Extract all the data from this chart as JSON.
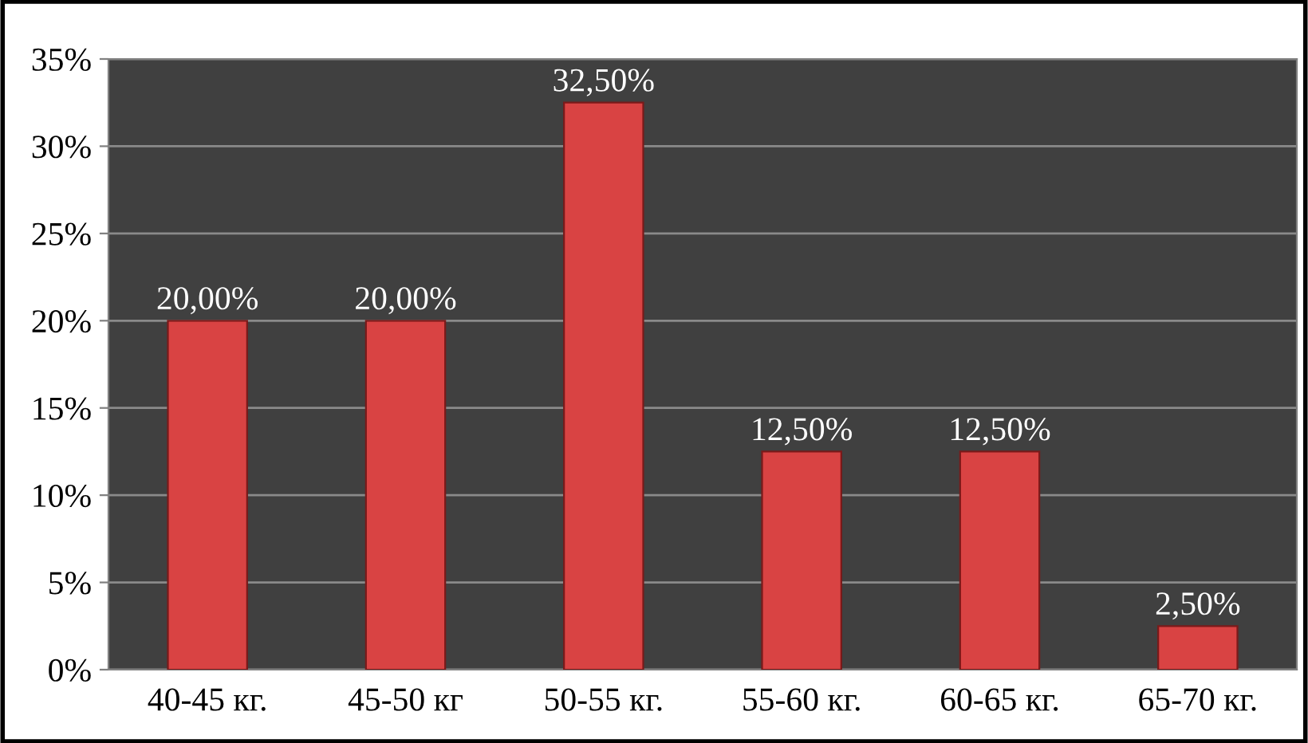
{
  "chart_data": {
    "type": "bar",
    "categories": [
      "40-45 кг.",
      "45-50 кг",
      "50-55 кг.",
      "55-60 кг.",
      "60-65 кг.",
      "65-70 кг."
    ],
    "values": [
      20,
      20,
      32.5,
      12.5,
      12.5,
      2.5
    ],
    "value_labels": [
      "20,00%",
      "20,00%",
      "32,50%",
      "12,50%",
      "12,50%",
      "2,50%"
    ],
    "color": "#d94343",
    "ylim": [
      0,
      35
    ],
    "yticks": [
      {
        "value": 0,
        "label": "0%"
      },
      {
        "value": 5,
        "label": "5%"
      },
      {
        "value": 10,
        "label": "10%"
      },
      {
        "value": 15,
        "label": "15%"
      },
      {
        "value": 20,
        "label": "20%"
      },
      {
        "value": 25,
        "label": "25%"
      },
      {
        "value": 30,
        "label": "30%"
      },
      {
        "value": 35,
        "label": "35%"
      }
    ],
    "grid": "y",
    "legend": false
  }
}
